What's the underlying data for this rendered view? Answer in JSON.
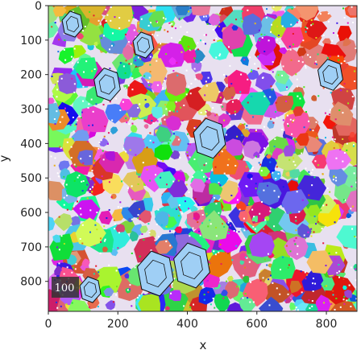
{
  "chart_data": {
    "type": "image",
    "x_label": "x",
    "y_label": "y",
    "xlim": [
      0,
      888
    ],
    "ylim": [
      887,
      0
    ],
    "xticks": [
      0,
      200,
      400,
      600,
      800
    ],
    "yticks": [
      0,
      100,
      200,
      300,
      400,
      500,
      600,
      700,
      800
    ],
    "scale_bar_label": "100"
  }
}
